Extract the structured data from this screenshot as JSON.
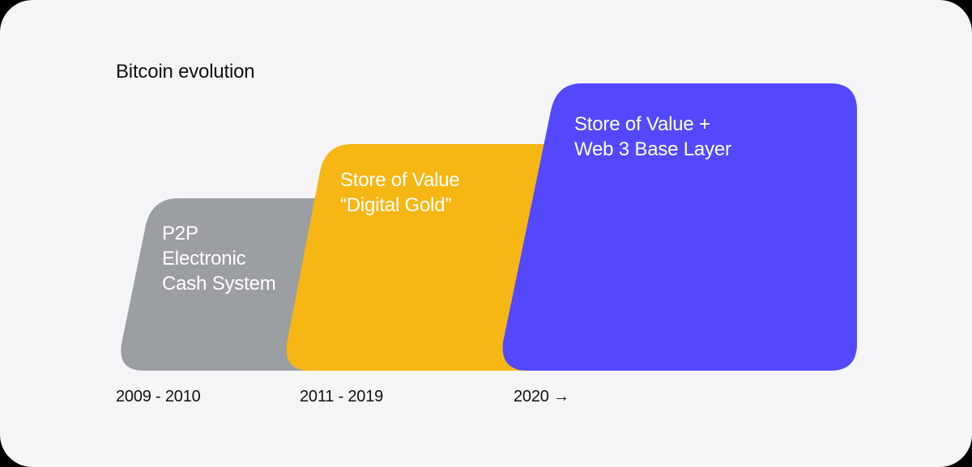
{
  "diagram": {
    "title": "Bitcoin evolution",
    "stages": [
      {
        "lines": [
          "P2P",
          "Electronic",
          "Cash System"
        ],
        "period": "2009 - 2010",
        "color": "#9b9ea3"
      },
      {
        "lines": [
          "Store of Value",
          "“Digital Gold”"
        ],
        "period": "2011 - 2019",
        "color": "#f6b614"
      },
      {
        "lines": [
          "Store of Value +",
          "Web 3 Base Layer"
        ],
        "period": "2020 →",
        "color": "#5448ff"
      }
    ]
  }
}
